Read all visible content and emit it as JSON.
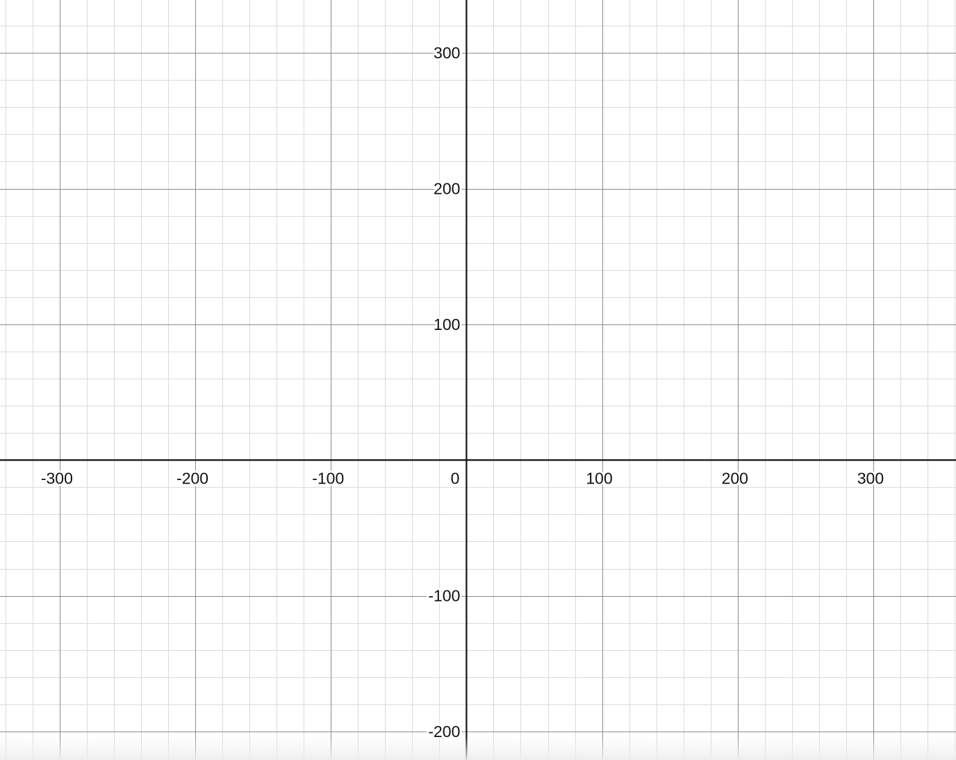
{
  "chart_data": {
    "type": "scatter",
    "title": "",
    "xlabel": "",
    "ylabel": "",
    "xlim": [
      -344,
      361
    ],
    "ylim": [
      -221,
      339
    ],
    "grid": true,
    "major_step": 100,
    "minor_step": 20,
    "x_ticks": [
      "-300",
      "-200",
      "-100",
      "100",
      "200",
      "300"
    ],
    "y_ticks": [
      "300",
      "200",
      "100",
      "-100",
      "-200"
    ],
    "origin_label": "0",
    "series": [],
    "colors": {
      "background": "#ffffff",
      "minor_grid": "#dadada",
      "major_grid": "#8a8a8a",
      "axis": "#111111"
    }
  }
}
